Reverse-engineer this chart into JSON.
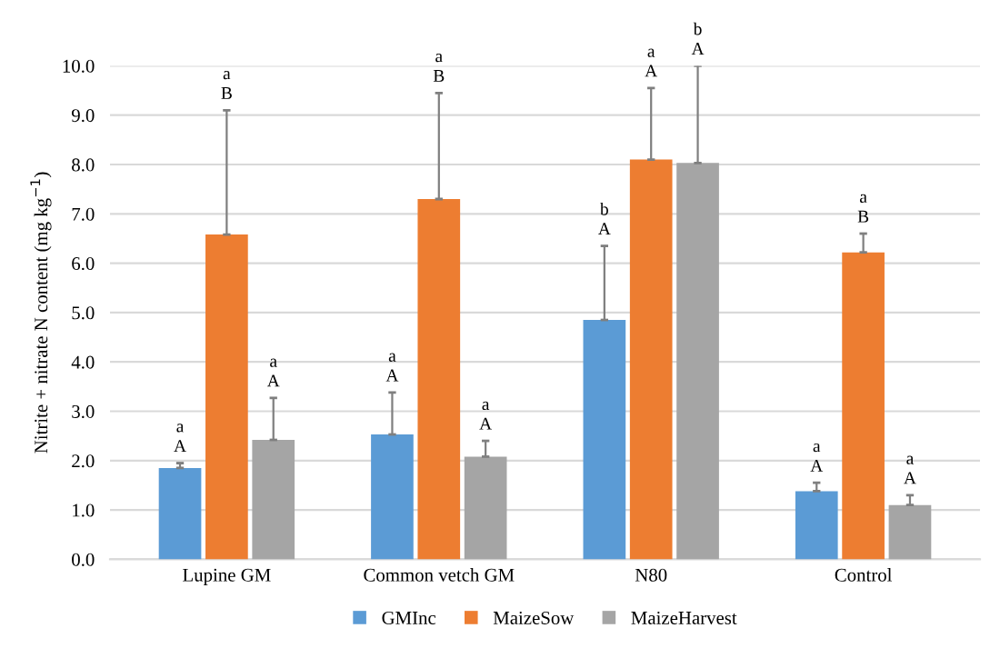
{
  "chart_data": {
    "type": "bar",
    "categories": [
      "Lupine GM",
      "Common vetch GM",
      "N80",
      "Control"
    ],
    "series": [
      {
        "name": "GMInc",
        "color": "#5b9bd5",
        "values": [
          1.85,
          2.53,
          4.85,
          1.38
        ],
        "errors": [
          [
            1.85,
            1.95
          ],
          [
            2.53,
            3.38
          ],
          [
            4.85,
            6.35
          ],
          [
            1.38,
            1.55
          ]
        ]
      },
      {
        "name": "MaizeSow",
        "color": "#ed7d31",
        "values": [
          6.58,
          7.3,
          8.1,
          6.22
        ],
        "errors": [
          [
            6.58,
            9.1
          ],
          [
            7.3,
            9.45
          ],
          [
            8.1,
            9.55
          ],
          [
            6.22,
            6.6
          ]
        ]
      },
      {
        "name": "MaizeHarvest",
        "color": "#a5a5a5",
        "values": [
          2.42,
          2.08,
          8.03,
          1.1
        ],
        "errors": [
          [
            2.42,
            3.27
          ],
          [
            2.08,
            2.4
          ],
          [
            8.03,
            10.0
          ],
          [
            1.1,
            1.3
          ]
        ]
      }
    ],
    "ylabel": "Nitrite + nitrate N content (mg kg$^{−1}$)",
    "ylim": [
      0,
      10
    ],
    "yticks": [
      {
        "value": 0,
        "label": "0.0"
      },
      {
        "value": 1,
        "label": "1.0"
      },
      {
        "value": 2,
        "label": "2.0"
      },
      {
        "value": 3,
        "label": "3.0"
      },
      {
        "value": 4,
        "label": "4.0"
      },
      {
        "value": 5,
        "label": "5.0"
      },
      {
        "value": 6,
        "label": "6.0"
      },
      {
        "value": 7,
        "label": "7.0"
      },
      {
        "value": 8,
        "label": "8.0"
      },
      {
        "value": 9,
        "label": "9.0"
      },
      {
        "value": 10,
        "label": "10.0"
      }
    ],
    "annotations": [
      "a\nA",
      "a\nB",
      "a\nA",
      "a\nA",
      "a\nB",
      "a\nA",
      "b\nA",
      "a\nA",
      "b\nA",
      "a\nA",
      "a\nB",
      "a\nA"
    ],
    "grid": "y",
    "legend": "bottom"
  }
}
